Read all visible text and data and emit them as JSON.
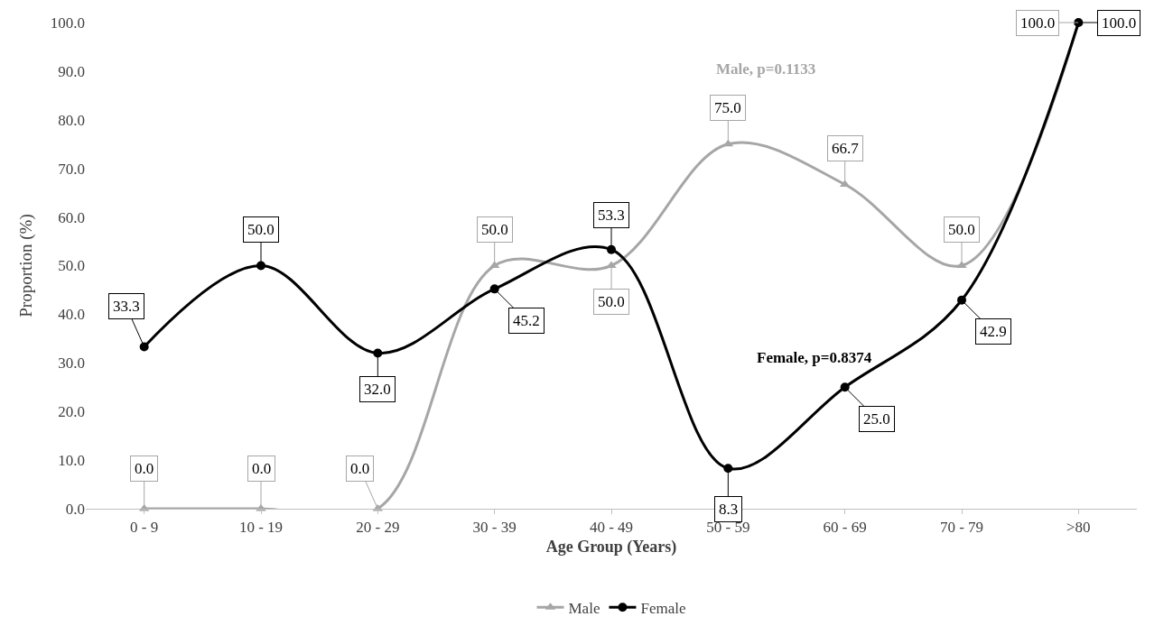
{
  "chart_data": {
    "type": "line",
    "xlabel": "Age Group (Years)",
    "ylabel": "Proportion (%)",
    "categories": [
      "0 - 9",
      "10 - 19",
      "20 - 29",
      "30 - 39",
      "40 - 49",
      "50 - 59",
      "60 - 69",
      "70 - 79",
      ">80"
    ],
    "series": [
      {
        "name": "Male",
        "color": "#a6a6a6",
        "marker": "triangle",
        "values": [
          0,
          0,
          0,
          50,
          50,
          75,
          66.7,
          50,
          100
        ],
        "value_labels": [
          "0.0",
          "0.0",
          "0.0",
          "50.0",
          "50.0",
          "75.0",
          "66.7",
          "50.0",
          "100.0"
        ]
      },
      {
        "name": "Female",
        "color": "#000000",
        "marker": "circle",
        "values": [
          33.3,
          50,
          32,
          45.2,
          53.3,
          8.3,
          25,
          42.9,
          100
        ],
        "value_labels": [
          "33.3",
          "50.0",
          "32.0",
          "45.2",
          "53.3",
          "8.3",
          "25.0",
          "42.9",
          "100.0"
        ]
      }
    ],
    "ylim": [
      0,
      100
    ],
    "yticks": [
      {
        "value": 0,
        "label": "0.0"
      },
      {
        "value": 10,
        "label": "10.0"
      },
      {
        "value": 20,
        "label": "20.0"
      },
      {
        "value": 30,
        "label": "30.0"
      },
      {
        "value": 40,
        "label": "40.0"
      },
      {
        "value": 50,
        "label": "50.0"
      },
      {
        "value": 60,
        "label": "60.0"
      },
      {
        "value": 70,
        "label": "70.0"
      },
      {
        "value": 80,
        "label": "80.0"
      },
      {
        "value": 90,
        "label": "90.0"
      },
      {
        "value": 100,
        "label": "100.0"
      }
    ],
    "annotations": [
      "Male, p=0.1133",
      "Female, p=0.8374"
    ],
    "legend": "bottom",
    "line_style": "solid"
  }
}
